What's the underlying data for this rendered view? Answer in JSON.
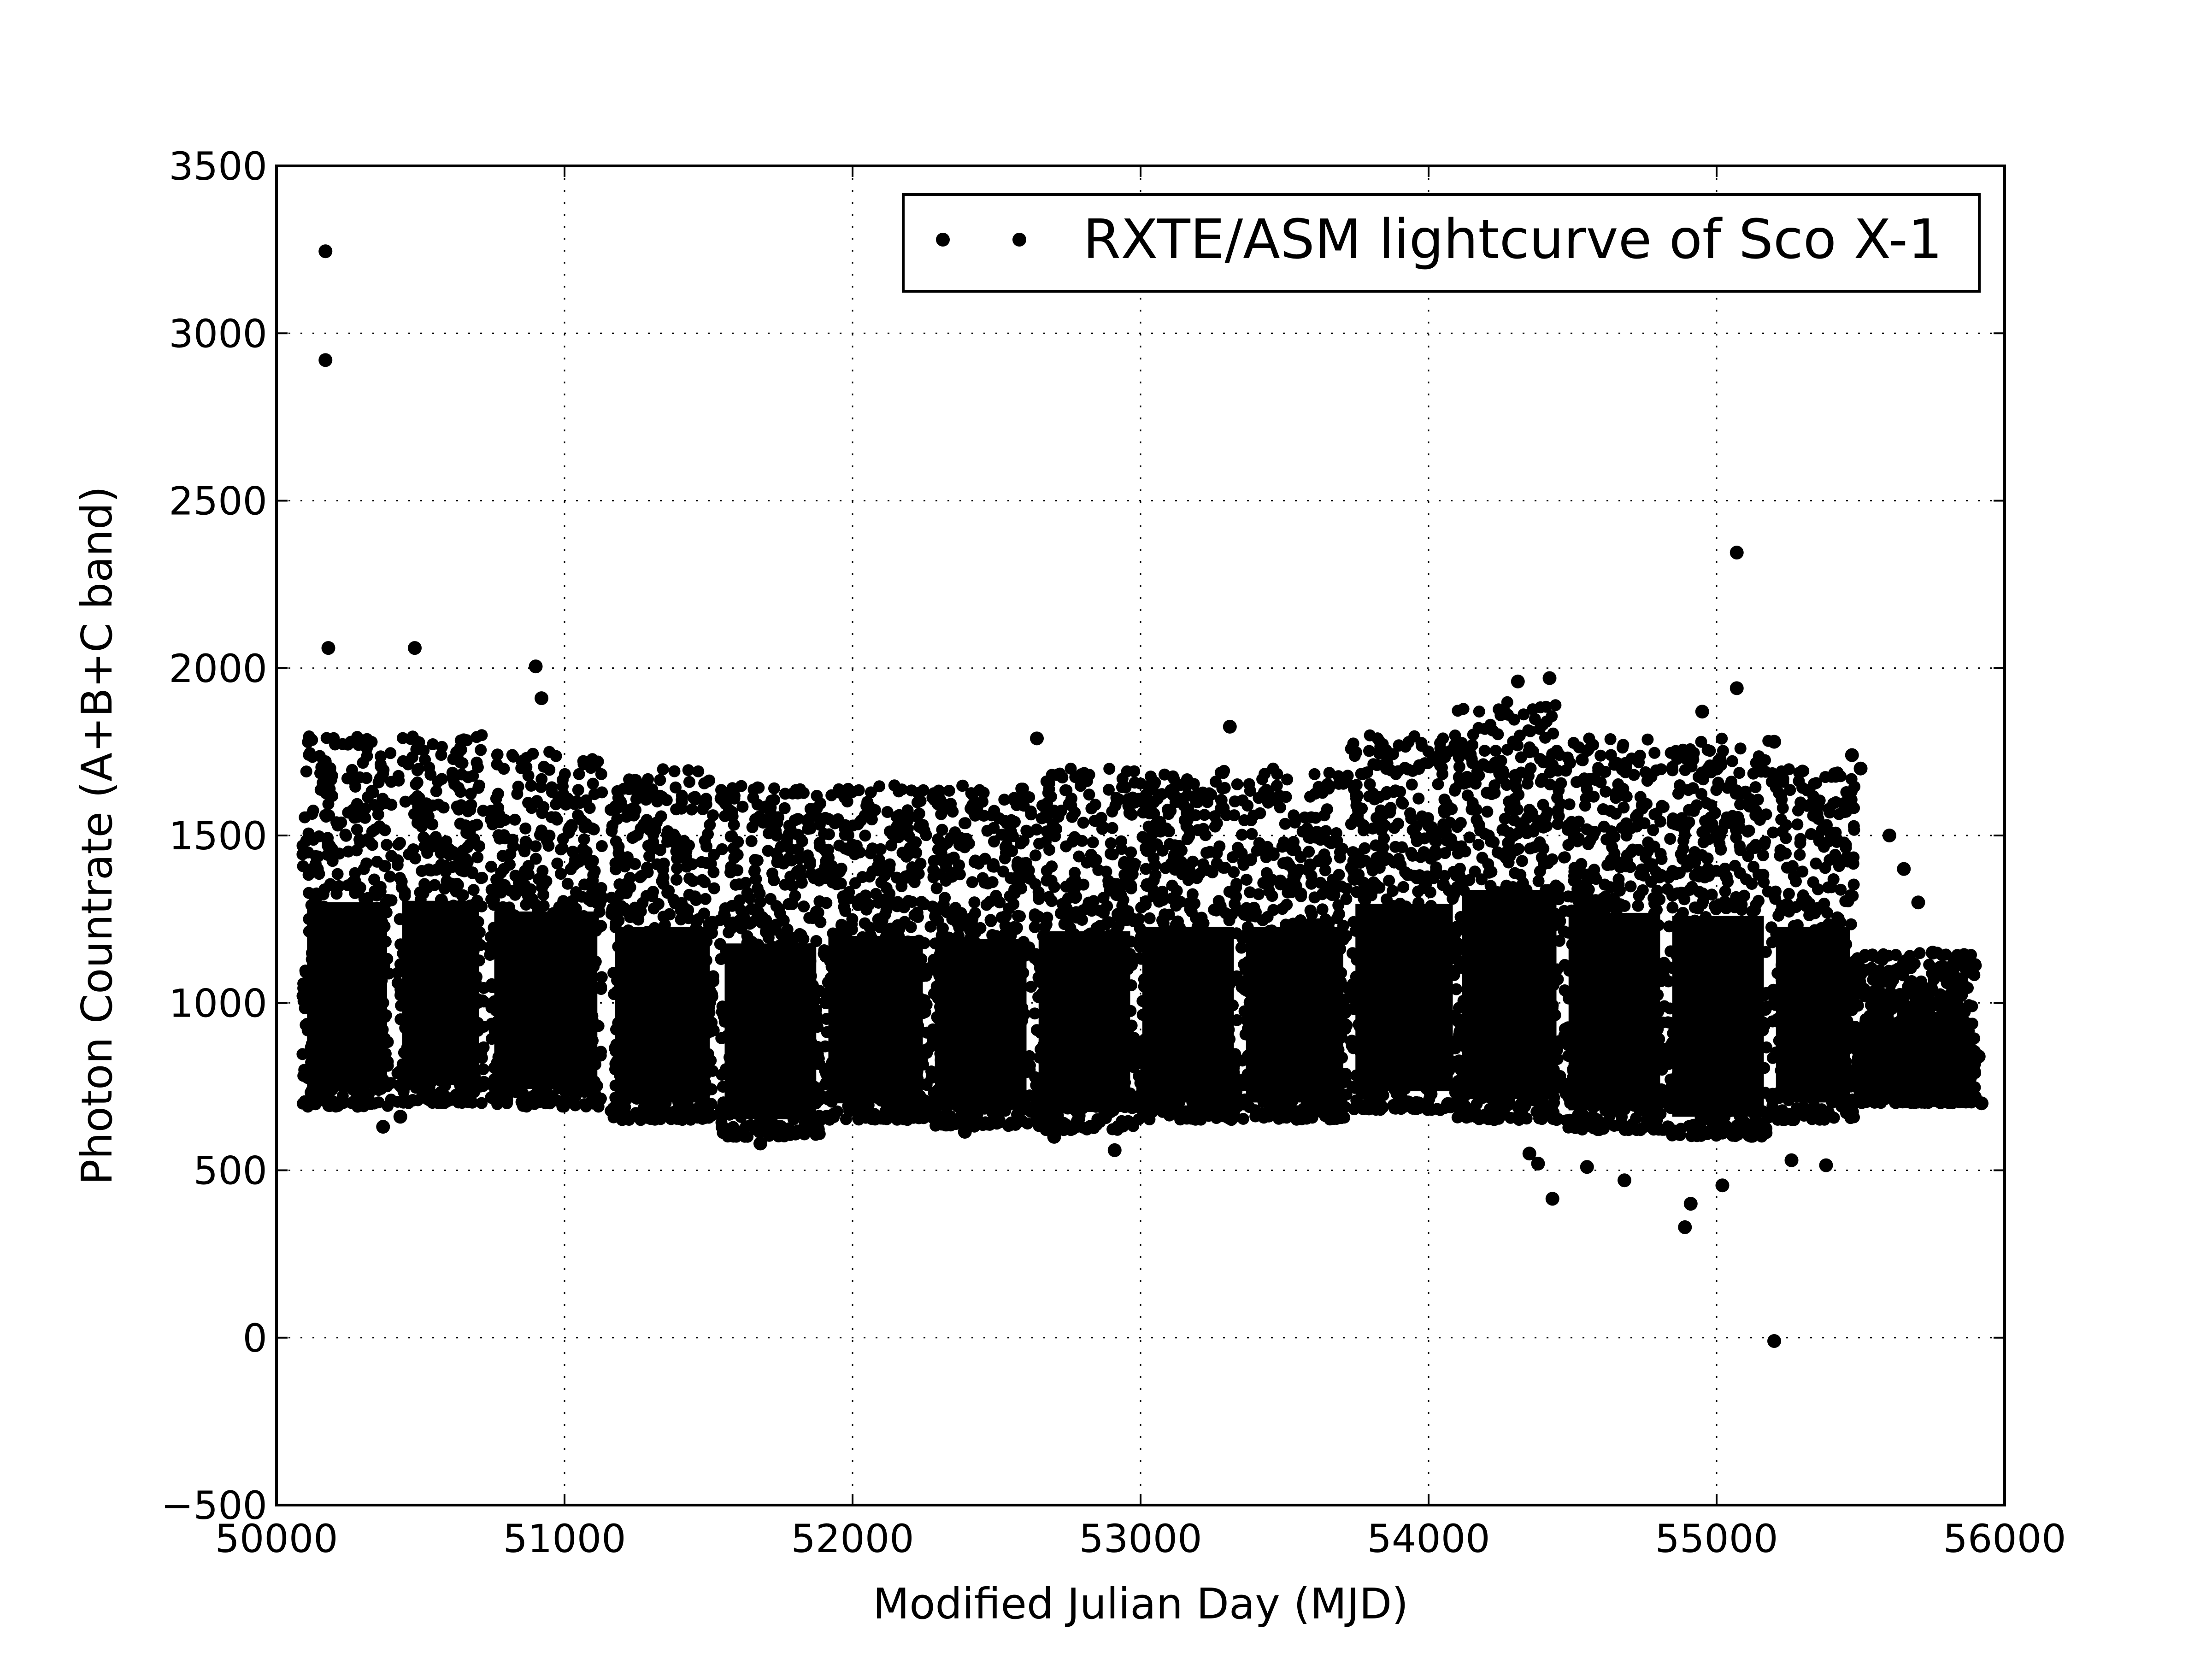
{
  "chart_data": {
    "type": "scatter",
    "xlabel": "Modified Julian Day (MJD)",
    "ylabel": "Photon Countrate (A+B+C band)",
    "xlim": [
      50000,
      56000
    ],
    "ylim": [
      -500,
      3500
    ],
    "xticks": [
      50000,
      51000,
      52000,
      53000,
      54000,
      55000,
      56000
    ],
    "yticks": [
      -500,
      0,
      500,
      1000,
      1500,
      2000,
      2500,
      3000,
      3500
    ],
    "xtick_labels": [
      "50000",
      "51000",
      "52000",
      "53000",
      "54000",
      "55000",
      "56000"
    ],
    "ytick_labels": [
      "−500",
      "0",
      "500",
      "1000",
      "1500",
      "2000",
      "2500",
      "3000",
      "3500"
    ],
    "grid": true,
    "legend": {
      "position": "upper-right",
      "entries": [
        "RXTE/ASM lightcurve of Sco X-1"
      ]
    },
    "marker_color": "#000000",
    "series": [
      {
        "name": "RXTE/ASM lightcurve of Sco X-1",
        "clusters": [
          {
            "x_range": [
              50090,
              50400
            ],
            "y_range": [
              690,
              1800
            ]
          },
          {
            "x_range": [
              50420,
              50720
            ],
            "y_range": [
              700,
              1800
            ]
          },
          {
            "x_range": [
              50740,
              51130
            ],
            "y_range": [
              690,
              1750
            ]
          },
          {
            "x_range": [
              51160,
              51520
            ],
            "y_range": [
              650,
              1700
            ]
          },
          {
            "x_range": [
              51540,
              51890
            ],
            "y_range": [
              600,
              1650
            ]
          },
          {
            "x_range": [
              51900,
              52260
            ],
            "y_range": [
              650,
              1650
            ]
          },
          {
            "x_range": [
              52270,
              52620
            ],
            "y_range": [
              630,
              1650
            ]
          },
          {
            "x_range": [
              52630,
              52980
            ],
            "y_range": [
              620,
              1700
            ]
          },
          {
            "x_range": [
              52990,
              53340
            ],
            "y_range": [
              650,
              1700
            ]
          },
          {
            "x_range": [
              53350,
              53720
            ],
            "y_range": [
              650,
              1700
            ]
          },
          {
            "x_range": [
              53730,
              54100
            ],
            "y_range": [
              680,
              1800
            ]
          },
          {
            "x_range": [
              54100,
              54460
            ],
            "y_range": [
              650,
              1900
            ]
          },
          {
            "x_range": [
              54470,
              54820
            ],
            "y_range": [
              620,
              1800
            ]
          },
          {
            "x_range": [
              54830,
              55180
            ],
            "y_range": [
              600,
              1800
            ]
          },
          {
            "x_range": [
              55190,
              55480
            ],
            "y_range": [
              650,
              1700
            ]
          },
          {
            "x_range": [
              55480,
              55900
            ],
            "y_range": [
              700,
              1150
            ]
          }
        ],
        "points": [
          {
            "x": 50170,
            "y": 3245
          },
          {
            "x": 50170,
            "y": 2920
          },
          {
            "x": 50180,
            "y": 2060
          },
          {
            "x": 50480,
            "y": 2060
          },
          {
            "x": 50900,
            "y": 2005
          },
          {
            "x": 50920,
            "y": 1910
          },
          {
            "x": 54310,
            "y": 1960
          },
          {
            "x": 54420,
            "y": 1970
          },
          {
            "x": 55070,
            "y": 2345
          },
          {
            "x": 55070,
            "y": 1940
          },
          {
            "x": 53310,
            "y": 1825
          },
          {
            "x": 52640,
            "y": 1790
          },
          {
            "x": 55200,
            "y": -10
          },
          {
            "x": 54890,
            "y": 330
          },
          {
            "x": 54910,
            "y": 400
          },
          {
            "x": 54430,
            "y": 415
          },
          {
            "x": 54680,
            "y": 470
          },
          {
            "x": 55020,
            "y": 455
          },
          {
            "x": 54350,
            "y": 550
          },
          {
            "x": 54380,
            "y": 520
          },
          {
            "x": 54550,
            "y": 510
          },
          {
            "x": 55260,
            "y": 530
          },
          {
            "x": 55380,
            "y": 515
          },
          {
            "x": 52910,
            "y": 560
          },
          {
            "x": 51680,
            "y": 580
          },
          {
            "x": 55920,
            "y": 700
          },
          {
            "x": 55910,
            "y": 840
          },
          {
            "x": 55840,
            "y": 940
          },
          {
            "x": 55800,
            "y": 780
          },
          {
            "x": 55750,
            "y": 1150
          },
          {
            "x": 55700,
            "y": 1300
          },
          {
            "x": 55650,
            "y": 1400
          },
          {
            "x": 55600,
            "y": 1500
          },
          {
            "x": 55470,
            "y": 1740
          },
          {
            "x": 55500,
            "y": 1700
          },
          {
            "x": 55200,
            "y": 1780
          },
          {
            "x": 54950,
            "y": 1870
          },
          {
            "x": 55000,
            "y": 1700
          },
          {
            "x": 50370,
            "y": 630
          },
          {
            "x": 50430,
            "y": 660
          },
          {
            "x": 52390,
            "y": 615
          },
          {
            "x": 52700,
            "y": 600
          }
        ]
      }
    ]
  }
}
